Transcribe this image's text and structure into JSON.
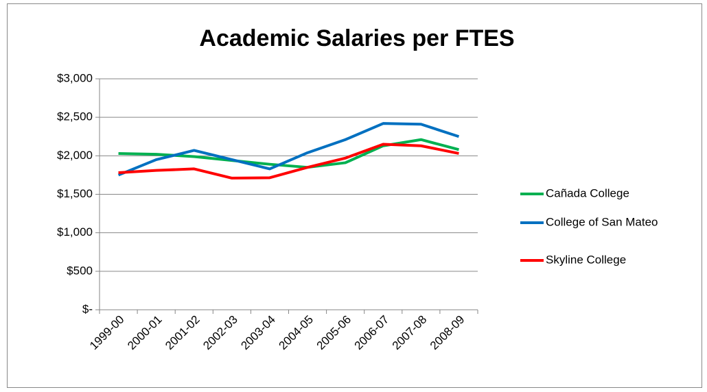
{
  "chart_data": {
    "type": "line",
    "title": "Academic Salaries per FTES",
    "categories": [
      "1999-00",
      "2000-01",
      "2001-02",
      "2002-03",
      "2003-04",
      "2004-05",
      "2005-06",
      "2006-07",
      "2007-08",
      "2008-09"
    ],
    "series": [
      {
        "name": "Cañada College",
        "color": "#00b050",
        "values": [
          2030,
          2020,
          1990,
          1940,
          1890,
          1850,
          1910,
          2130,
          2210,
          2080
        ]
      },
      {
        "name": "College of San Mateo",
        "color": "#0070c0",
        "values": [
          1750,
          1950,
          2070,
          1950,
          1830,
          2040,
          2210,
          2420,
          2410,
          2250
        ]
      },
      {
        "name": "Skyline College",
        "color": "#ff0000",
        "values": [
          1780,
          1810,
          1830,
          1710,
          1715,
          1850,
          1970,
          2150,
          2130,
          2030
        ]
      }
    ],
    "ylim": [
      0,
      3000
    ],
    "yticks": [
      {
        "value": 0,
        "label": "$-"
      },
      {
        "value": 500,
        "label": "$500"
      },
      {
        "value": 1000,
        "label": "$1,000"
      },
      {
        "value": 1500,
        "label": "$1,500"
      },
      {
        "value": 2000,
        "label": "$2,000"
      },
      {
        "value": 2500,
        "label": "$2,500"
      },
      {
        "value": 3000,
        "label": "$3,000"
      }
    ],
    "grid": true,
    "legend": "right"
  }
}
